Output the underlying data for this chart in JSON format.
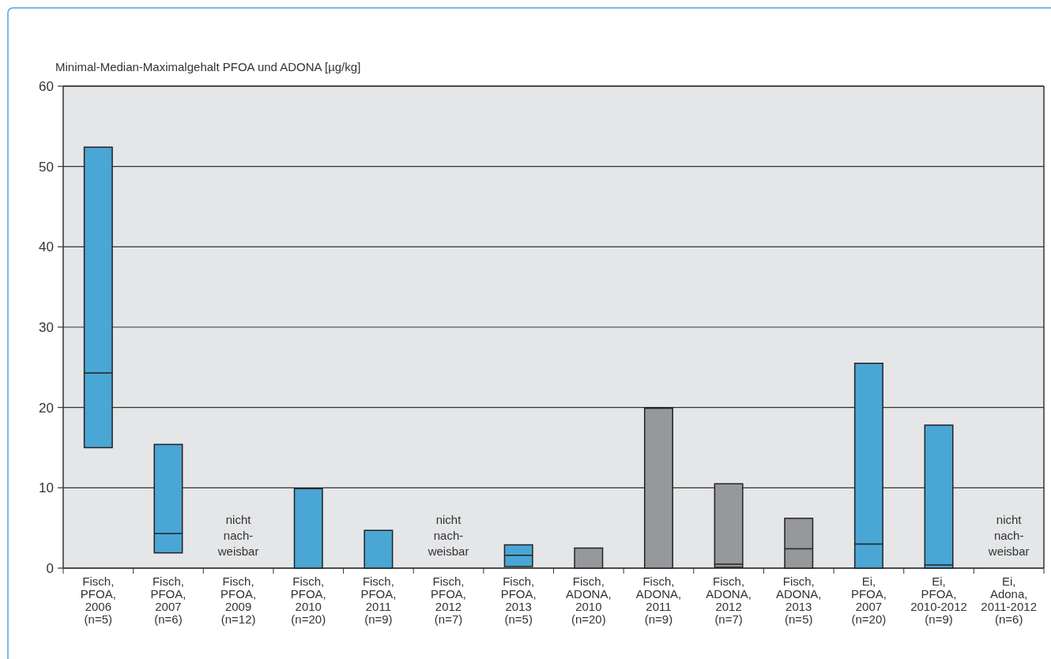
{
  "chart_data": {
    "type": "box",
    "ylabel": "Minimal-Median-Maximalgehalt PFOA und ADONA [µg/kg]",
    "categories": [
      "Fisch,\nPFOA,\n2006\n(n=5)",
      "Fisch,\nPFOA,\n2007\n(n=6)",
      "Fisch,\nPFOA,\n2009\n(n=12)",
      "Fisch,\nPFOA,\n2010\n(n=20)",
      "Fisch,\nPFOA,\n2011\n(n=9)",
      "Fisch,\nPFOA,\n2012\n(n=7)",
      "Fisch,\nPFOA,\n2013\n(n=5)",
      "Fisch,\nADONA,\n2010\n(n=20)",
      "Fisch,\nADONA,\n2011\n(n=9)",
      "Fisch,\nADONA,\n2012\n(n=7)",
      "Fisch,\nADONA,\n2013\n(n=5)",
      "Ei,\nPFOA,\n2007\n(n=20)",
      "Ei,\nPFOA,\n2010-2012\n(n=9)",
      "Ei,\nAdona,\n2011-2012\n(n=6)"
    ],
    "boxes": [
      {
        "low": 15,
        "q1": 15,
        "median": 24.3,
        "q3": 52.4,
        "high": 52.4
      },
      {
        "low": 1.9,
        "q1": 1.9,
        "median": 4.3,
        "q3": 15.4,
        "high": 15.4
      },
      null,
      {
        "low": 0,
        "q1": 0,
        "median": null,
        "q3": 9.9,
        "high": 9.9
      },
      {
        "low": 0,
        "q1": 0,
        "median": null,
        "q3": 4.7,
        "high": 4.7
      },
      null,
      {
        "low": 0.2,
        "q1": 0.2,
        "median": 1.6,
        "q3": 2.9,
        "high": 2.9
      },
      {
        "low": 0,
        "q1": 0,
        "median": null,
        "q3": 2.5,
        "high": 2.5
      },
      {
        "low": 0,
        "q1": 0,
        "median": null,
        "q3": 19.9,
        "high": 19.9
      },
      {
        "low": 0.1,
        "q1": 0.1,
        "median": 0.5,
        "q3": 10.5,
        "high": 10.5
      },
      {
        "low": 0,
        "q1": 0,
        "median": 2.4,
        "q3": 6.2,
        "high": 6.2
      },
      {
        "low": 0,
        "q1": 0,
        "median": 3,
        "q3": 25.5,
        "high": 25.5
      },
      {
        "low": 0,
        "q1": 0,
        "median": 0.4,
        "q3": 17.8,
        "high": 17.8
      },
      null
    ],
    "colors": [
      "#4aa6d4",
      "#4aa6d4",
      null,
      "#4aa6d4",
      "#4aa6d4",
      null,
      "#4aa6d4",
      "#97989b",
      "#97989b",
      "#97989b",
      "#97989b",
      "#4aa6d4",
      "#4aa6d4",
      null
    ],
    "ylim": [
      0,
      60
    ],
    "yticks": [
      0,
      10,
      20,
      30,
      40,
      50,
      60
    ],
    "grid": "y",
    "annotations": [
      "nicht\nnach-\nweisbar",
      "nicht\nnach-\nweisbar",
      "nicht\nnach-\nweisbar"
    ]
  }
}
